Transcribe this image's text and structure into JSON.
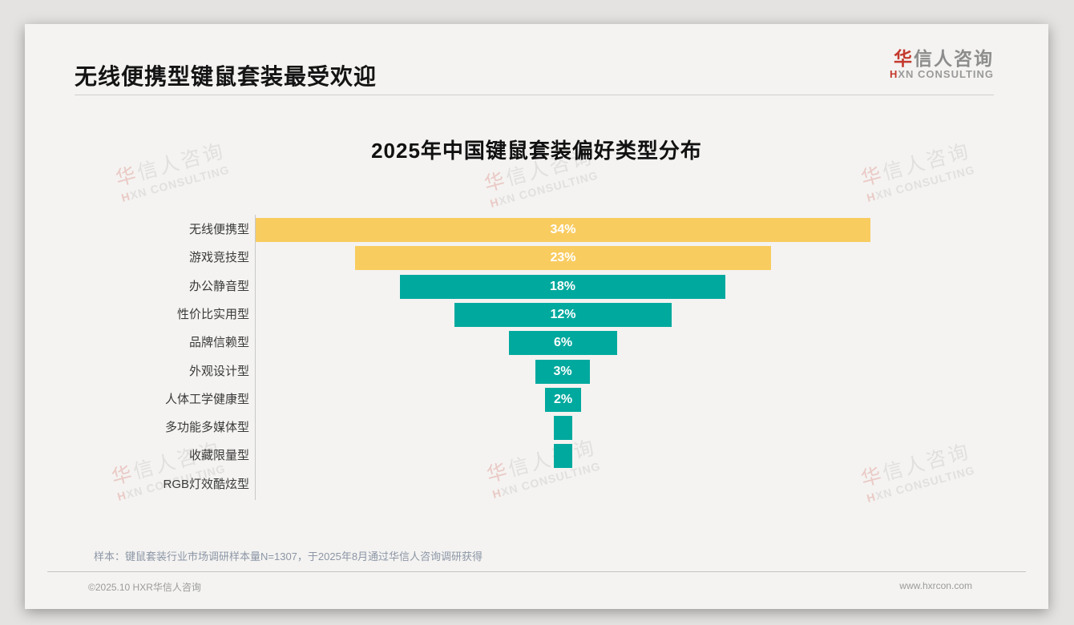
{
  "header": {
    "title": "无线便携型键鼠套装最受欢迎",
    "logo": {
      "cn_first": "华",
      "cn_rest": "信人咨询",
      "en_first": "H",
      "en_rest": "XN CONSULTING",
      "accent_color": "#c43a2e"
    }
  },
  "chart_data": {
    "type": "bar",
    "variant": "centered-funnel",
    "title": "2025年中国键鼠套装偏好类型分布",
    "categories": [
      "无线便携型",
      "游戏竞技型",
      "办公静音型",
      "性价比实用型",
      "品牌信赖型",
      "外观设计型",
      "人体工学健康型",
      "多功能多媒体型",
      "收藏限量型",
      "RGB灯效酷炫型"
    ],
    "values": [
      34,
      23,
      18,
      12,
      6,
      3,
      2,
      1,
      1,
      0
    ],
    "bar_labels": [
      "34%",
      "23%",
      "18%",
      "12%",
      "6%",
      "3%",
      "2%",
      "",
      "",
      ""
    ],
    "unit": "%",
    "xlim": [
      0,
      40
    ],
    "legend": false,
    "gridlines": false,
    "colors": {
      "highlight": "#f9cc60",
      "default": "#00a99e",
      "highlight_count": 2
    }
  },
  "watermark": {
    "cn_first": "华",
    "cn_rest": "信人咨询",
    "en_first": "H",
    "en_rest": "XN CONSULTING"
  },
  "footnote": "样本：键鼠套装行业市场调研样本量N=1307，于2025年8月通过华信人咨询调研获得",
  "footer": {
    "copyright": "©2025.10 HXR华信人咨询",
    "website": "www.hxrcon.com"
  }
}
